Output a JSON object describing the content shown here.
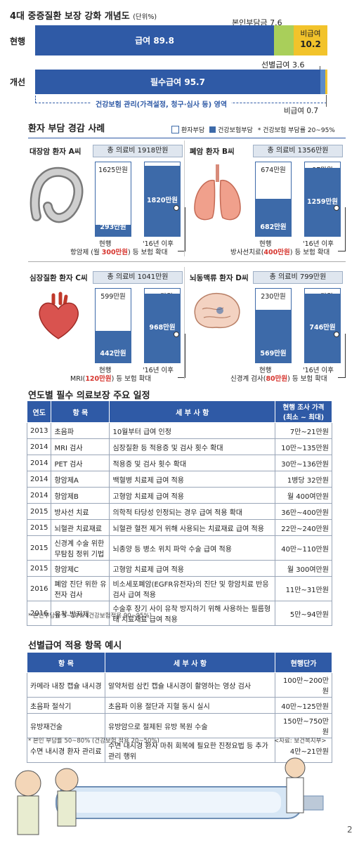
{
  "top": {
    "title": "4대 중증질환 보장 강화 개념도",
    "unit": "(단위%)",
    "current_label": "현행",
    "improved_label": "개선",
    "label_benefit": "급여 89.8",
    "label_self": "본인부담금 7.6",
    "label_nonbenefit_name": "비급여",
    "label_nonbenefit_value": "10.2",
    "label_selective": "선별급여 3.6",
    "label_required": "필수급여 95.7",
    "label_nonbenefit2": "비급여 0.7",
    "mgmt_text": "건강보험 관리(가격설정, 청구·심사 등) 영역"
  },
  "chart_data": [
    {
      "type": "bar",
      "title": "4대 중증질환 보장 강화 개념도",
      "unit": "(단위%)",
      "categories": [
        "현행",
        "개선"
      ],
      "series": [
        {
          "name": "급여",
          "values": [
            89.8,
            null
          ]
        },
        {
          "name": "본인부담금",
          "values": [
            7.6,
            null
          ]
        },
        {
          "name": "비급여",
          "values": [
            10.2,
            0.7
          ]
        },
        {
          "name": "필수급여",
          "values": [
            null,
            95.7
          ]
        },
        {
          "name": "선별급여",
          "values": [
            null,
            3.6
          ]
        }
      ],
      "colors": {
        "benefit": "#2f5aa6",
        "self": "#a9cf5a",
        "nonbenefit": "#f2c32b",
        "selective": "#5c8bc9",
        "gap": "#c9d3e0"
      }
    },
    {
      "type": "bar",
      "title": "환자 부담 경감 사례",
      "legend": [
        "환자부담",
        "건강보험부담"
      ],
      "legend_note": "* 건강보험 부담률 20~95%",
      "cases": [
        {
          "name": "대장암 환자 A씨",
          "total": "총 의료비 1918만원",
          "current_patient": "1625만원",
          "current_insurance": "293만원",
          "after_patient": "98만원",
          "after_insurance": "1820만원",
          "values": [
            1625,
            293,
            98,
            1820
          ],
          "note_pre": "항암제 (월 ",
          "note_red": "300만원",
          "note_post": ") 등 보험 확대"
        },
        {
          "name": "폐암 환자 B씨",
          "total": "총 의료비 1356만원",
          "current_patient": "674만원",
          "current_insurance": "682만원",
          "after_patient": "97만원",
          "after_insurance": "1259만원",
          "values": [
            674,
            682,
            97,
            1259
          ],
          "note_pre": "방사선치료(",
          "note_red": "400만원",
          "note_post": ") 등 보험 확대"
        },
        {
          "name": "심장질환 환자 C씨",
          "total": "총 의료비 1041만원",
          "current_patient": "599만원",
          "current_insurance": "442만원",
          "after_patient": "73만원",
          "after_insurance": "968만원",
          "values": [
            599,
            442,
            73,
            968
          ],
          "note_pre": "MRI(",
          "note_red": "120만원",
          "note_post": ") 등 보험 확대"
        },
        {
          "name": "뇌동맥류 환자 D씨",
          "total": "총 의료비 799만원",
          "current_patient": "230만원",
          "current_insurance": "569만원",
          "after_patient": "53만원",
          "after_insurance": "746만원",
          "values": [
            230,
            569,
            53,
            746
          ],
          "note_pre": "신경계 검사(",
          "note_red": "80만원",
          "note_post": ") 등 보험 확대"
        }
      ],
      "x_labels": [
        "현행",
        "'16년 이후"
      ]
    }
  ],
  "cases_section": {
    "title": "환자 부담 경감 사례",
    "legend_patient": "환자부담",
    "legend_insurance": "건강보험부담",
    "legend_note": "* 건강보험 부담률 20~95%",
    "x_current": "현행",
    "x_after": "'16년 이후"
  },
  "schedule": {
    "title": "연도별 필수 의료보장 주요 일정",
    "headers": [
      "연도",
      "항 목",
      "세 부 사 항",
      "현행 조사 가격\n(최소 ~ 최대)"
    ],
    "rows": [
      [
        "2013",
        "초음파",
        "10월부터 급여 인정",
        "7만~21만원"
      ],
      [
        "2014",
        "MRI 검사",
        "심장질환 등 적용증 및 검사 횟수 확대",
        "10만~135만원"
      ],
      [
        "2014",
        "PET 검사",
        "적용증 및 검사 횟수 확대",
        "30만~136만원"
      ],
      [
        "2014",
        "항암제A",
        "백혈병 치료제 급여 적용",
        "1병당 32만원"
      ],
      [
        "2014",
        "항암제B",
        "고형암 치료제 급여 적용",
        "월 400여만원"
      ],
      [
        "2015",
        "방사선 치료",
        "의학적 타당성 인정되는 경우 급여 적용 확대",
        "36만~400만원"
      ],
      [
        "2015",
        "뇌혈관 치료재료",
        "뇌혈관 혈전 제거 위해 사용되는 치료재료 급여 적용",
        "22만~240만원"
      ],
      [
        "2015",
        "신경계 수술 위한 무탐침 정위 기법",
        "뇌종양 등 병소 위치 파악 수술 급여 적용",
        "40만~110만원"
      ],
      [
        "2015",
        "항암제C",
        "고형암 치료제 급여 적용",
        "월 300여만원"
      ],
      [
        "2016",
        "폐암 진단 위한 유전자 검사",
        "비소세포폐암(EGFR유전자)의 진단 및 항암치료 반응 검사 급여 적용",
        "11만~31만원"
      ],
      [
        "2016",
        "유착 방지제",
        "수술후 장기 사이 유착 방지하기 위해 사용하는 필름형태 치료재료 급여 적용",
        "5만~94만원"
      ]
    ],
    "note": "* 본인부담률 5~10% (건강보험적용 90~95%)"
  },
  "selective": {
    "title": "선별급여 적용 항목 예시",
    "headers": [
      "항 목",
      "세 부 사 항",
      "현행단가"
    ],
    "rows": [
      [
        "카메라 내장 캡슐 내시경",
        "알약처럼 삼킨 캡슐 내시경이 촬영하는 영상 검사",
        "100만~200만원"
      ],
      [
        "초음파 절삭기",
        "초음파 이용 절단과 지혈 동시 실시",
        "40만~125만원"
      ],
      [
        "유방재건술",
        "유방암으로 절제된 유방 복원 수술",
        "150만~750만원"
      ],
      [
        "수면 내시경 환자 관리료",
        "수면 내시경 환자 마취 회복에 필요한 진정요법 등 추가 관리 행위",
        "4만~21만원"
      ]
    ],
    "note": "* 본인 부담률 50~80% (건강보험 적용 20~50%)",
    "source": "<자료: 보건복지부>"
  },
  "page_number": "2"
}
